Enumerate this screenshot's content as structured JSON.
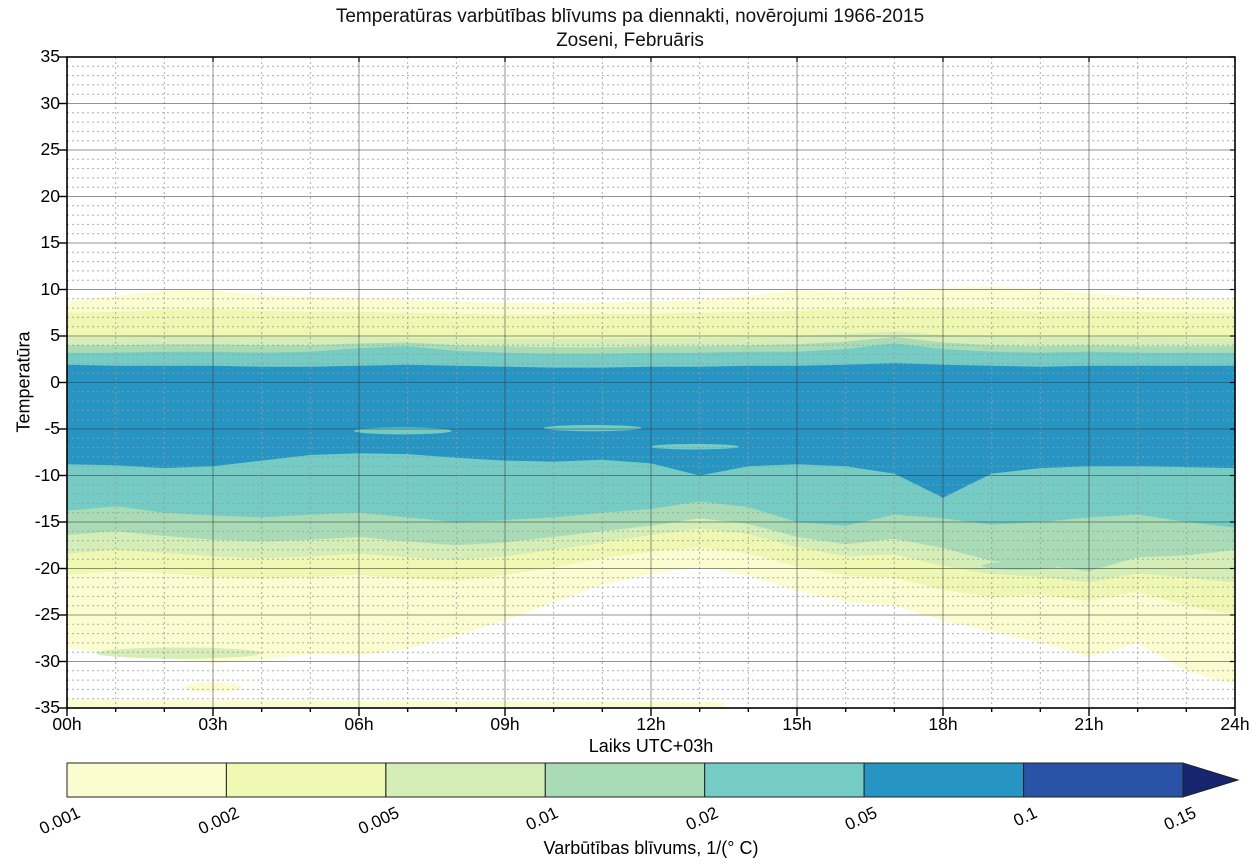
{
  "title": {
    "line1": "Temperatūras varbūtības blīvums pa diennakti, novērojumi 1966-2015",
    "line2": "Zoseni, Februāris"
  },
  "axes": {
    "x": {
      "label": "Laiks UTC+03h",
      "range_hours": [
        0,
        24
      ],
      "major_tick_step_hours": 3,
      "minor_tick_step_hours": 1,
      "tick_labels": [
        "00h",
        "03h",
        "06h",
        "09h",
        "12h",
        "15h",
        "18h",
        "21h",
        "24h"
      ]
    },
    "y": {
      "label": "Temperatūra",
      "range_degC": [
        -35,
        35
      ],
      "major_tick_step": 5,
      "minor_tick_step": 1,
      "tick_labels": [
        "35",
        "30",
        "25",
        "20",
        "15",
        "10",
        "5",
        "0",
        "-5",
        "-10",
        "-15",
        "-20",
        "-25",
        "-30",
        "-35"
      ]
    },
    "grid": {
      "major": "solid",
      "minor": "dashed"
    }
  },
  "colorbar": {
    "label": "Varbūtības blīvums, 1/(° C)",
    "tick_labels": [
      "0.001",
      "0.002",
      "0.005",
      "0.01",
      "0.02",
      "0.05",
      "0.1",
      "0.15"
    ],
    "segment_colors": [
      "#fbfdd1",
      "#eef8b2",
      "#d5edb6",
      "#a9dcb6",
      "#74ccc4",
      "#2795c4",
      "#2a52a7"
    ],
    "arrow_color": "#16256e",
    "outline_color": "#222222"
  },
  "chart_data": {
    "type": "filled_contour",
    "title": "Temperatūras varbūtības blīvums pa diennakti, novērojumi 1966-2015 — Zoseni, Februāris",
    "xlabel": "Laiks UTC+03h",
    "ylabel": "Temperatūra",
    "xlim_hours": [
      0,
      24
    ],
    "ylim_degC": [
      -35,
      35
    ],
    "levels_density_per_degC": [
      0.001,
      0.002,
      0.005,
      0.01,
      0.02,
      0.05,
      0.1,
      0.15
    ],
    "level_colors": {
      "0.001": "#fbfdd1",
      "0.002": "#eef8b2",
      "0.005": "#d5edb6",
      "0.01": "#a9dcb6",
      "0.02": "#74ccc4",
      "0.05": "#2795c4",
      "0.1": "#2a52a7"
    },
    "hours": [
      0,
      1,
      2,
      3,
      4,
      5,
      6,
      7,
      8,
      9,
      10,
      11,
      12,
      13,
      14,
      15,
      16,
      17,
      18,
      19,
      20,
      21,
      22,
      23,
      24
    ],
    "bands": [
      {
        "level": 0.001,
        "upper": [
          8.7,
          9.3,
          9.9,
          9.9,
          9.4,
          9.2,
          9.1,
          8.9,
          8.7,
          8.6,
          8.5,
          8.6,
          8.7,
          8.9,
          9.3,
          9.9,
          9.7,
          9.8,
          10.2,
          10.3,
          10.1,
          9.6,
          9.2,
          9.0,
          8.9
        ],
        "lower": [
          -28.5,
          -29.3,
          -29.6,
          -30.2,
          -29.8,
          -29.2,
          -29.4,
          -28.6,
          -27.2,
          -25.6,
          -23.6,
          -21.8,
          -20.6,
          -19.8,
          -20.8,
          -22.4,
          -23.6,
          -24.0,
          -25.6,
          -26.8,
          -28.0,
          -29.5,
          -28.0,
          -31.0,
          -32.5
        ]
      },
      {
        "level": 0.002,
        "upper": [
          7.5,
          7.6,
          7.8,
          7.9,
          7.7,
          7.6,
          7.6,
          7.5,
          7.4,
          7.3,
          7.3,
          7.4,
          7.4,
          7.5,
          7.6,
          7.7,
          7.9,
          8.1,
          8.0,
          7.8,
          7.6,
          7.7,
          7.6,
          7.5,
          7.5
        ],
        "lower": [
          -20.7,
          -20.3,
          -20.5,
          -20.9,
          -21.1,
          -20.9,
          -20.7,
          -21.1,
          -21.3,
          -20.7,
          -19.9,
          -18.9,
          -18.2,
          -17.7,
          -18.4,
          -19.8,
          -20.8,
          -21.0,
          -22.3,
          -23.1,
          -22.8,
          -23.5,
          -22.5,
          -24.0,
          -25.0
        ]
      },
      {
        "level": 0.005,
        "upper": [
          4.9,
          4.9,
          5.0,
          5.0,
          4.9,
          4.9,
          4.9,
          4.8,
          4.8,
          4.7,
          4.7,
          4.7,
          4.8,
          4.8,
          4.9,
          5.0,
          5.2,
          5.5,
          5.1,
          5.0,
          4.9,
          4.9,
          4.9,
          4.8,
          4.8
        ],
        "lower": [
          -18.4,
          -18.0,
          -18.3,
          -18.7,
          -18.9,
          -18.7,
          -18.4,
          -18.8,
          -19.1,
          -18.7,
          -18.0,
          -17.2,
          -16.4,
          -15.7,
          -16.3,
          -17.7,
          -18.7,
          -18.5,
          -19.7,
          -20.6,
          -20.9,
          -21.5,
          -20.5,
          -21.0,
          -21.5
        ]
      },
      {
        "level": 0.01,
        "upper": [
          4.0,
          4.0,
          4.1,
          4.1,
          4.0,
          4.0,
          4.2,
          4.3,
          4.0,
          3.9,
          3.8,
          3.8,
          3.9,
          3.9,
          4.0,
          4.1,
          4.4,
          4.9,
          4.3,
          4.0,
          3.9,
          4.0,
          3.9,
          3.9,
          3.9
        ],
        "lower": [
          -16.4,
          -16.0,
          -16.5,
          -16.9,
          -17.1,
          -16.9,
          -16.6,
          -17.1,
          -17.5,
          -17.2,
          -16.6,
          -16.0,
          -15.4,
          -14.6,
          -15.2,
          -16.6,
          -17.4,
          -16.8,
          -17.8,
          -19.2,
          -19.6,
          -20.3,
          -18.8,
          -18.6,
          -18.0
        ]
      },
      {
        "level": 0.02,
        "upper": [
          3.2,
          3.2,
          3.3,
          3.3,
          3.2,
          3.3,
          3.7,
          3.9,
          3.4,
          3.2,
          3.1,
          3.1,
          3.2,
          3.2,
          3.3,
          3.3,
          3.6,
          4.2,
          3.6,
          3.3,
          3.2,
          3.3,
          3.2,
          3.2,
          3.2
        ],
        "lower": [
          -13.8,
          -13.3,
          -14.0,
          -14.3,
          -14.5,
          -14.2,
          -14.0,
          -14.5,
          -15.0,
          -14.8,
          -14.5,
          -14.0,
          -13.6,
          -12.8,
          -13.4,
          -15.0,
          -15.4,
          -14.2,
          -14.6,
          -15.3,
          -15.0,
          -14.5,
          -14.2,
          -15.0,
          -15.6
        ]
      },
      {
        "level": 0.05,
        "upper": [
          1.9,
          1.8,
          1.8,
          1.8,
          1.7,
          1.7,
          1.8,
          1.9,
          1.8,
          1.7,
          1.6,
          1.6,
          1.7,
          1.7,
          1.8,
          1.8,
          1.9,
          2.1,
          1.9,
          1.8,
          1.7,
          1.8,
          1.8,
          1.8,
          1.8
        ],
        "lower": [
          -8.8,
          -8.9,
          -9.2,
          -9.0,
          -8.4,
          -7.8,
          -7.6,
          -7.7,
          -8.1,
          -8.4,
          -8.5,
          -8.3,
          -8.7,
          -10.0,
          -9.0,
          -8.8,
          -9.0,
          -9.8,
          -12.4,
          -9.8,
          -9.2,
          -9.0,
          -9.0,
          -9.1,
          -9.2
        ]
      }
    ],
    "islands": [
      {
        "shape": "ellipse",
        "h": 6.9,
        "t": -5.2,
        "rh": 1.0,
        "rt": 0.38,
        "level": "0.02"
      },
      {
        "shape": "ellipse",
        "h": 10.8,
        "t": -4.9,
        "rh": 1.0,
        "rt": 0.33,
        "level": "0.02"
      },
      {
        "shape": "ellipse",
        "h": 12.9,
        "t": -6.9,
        "rh": 0.9,
        "rt": 0.3,
        "level": "0.02"
      },
      {
        "shape": "ellipse",
        "h": 2.3,
        "t": -29.1,
        "rh": 1.7,
        "rt": 0.6,
        "level": "0.005"
      },
      {
        "shape": "ellipse",
        "h": 19.6,
        "t": -19.7,
        "rh": 0.8,
        "rt": 0.45,
        "level": "0.01"
      },
      {
        "shape": "ellipse",
        "h": 3.0,
        "t": -32.8,
        "rh": 0.6,
        "rt": 0.55,
        "level": "0.001"
      },
      {
        "shape": "poly",
        "pts": [
          [
            0,
            -34.1
          ],
          [
            13.5,
            -34.35
          ],
          [
            13.5,
            -35
          ],
          [
            0,
            -35
          ]
        ],
        "level": "0.001"
      }
    ]
  }
}
